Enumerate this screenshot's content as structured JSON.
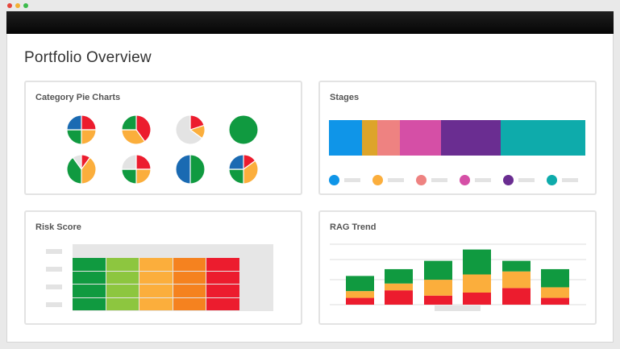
{
  "window": {
    "dots": [
      "#e5463c",
      "#f2b034",
      "#3cbb4c"
    ]
  },
  "page": {
    "title": "Portfolio Overview"
  },
  "colors": {
    "green": "#109a40",
    "lime": "#8dc63f",
    "amber": "#fbae3c",
    "orange": "#f5821f",
    "red": "#ec1c2e",
    "blue": "#1a6ab2",
    "grey": "#e3e3e3"
  },
  "panels": {
    "pies": {
      "title": "Category Pie Charts",
      "pies": [
        {
          "slices": [
            {
              "color": "#ec1c2e",
              "value": 0.25
            },
            {
              "color": "#fbae3c",
              "value": 0.25
            },
            {
              "color": "#109a40",
              "value": 0.25
            },
            {
              "color": "#1a6ab2",
              "value": 0.25
            }
          ]
        },
        {
          "slices": [
            {
              "color": "#ec1c2e",
              "value": 0.4
            },
            {
              "color": "#fbae3c",
              "value": 0.35
            },
            {
              "color": "#109a40",
              "value": 0.25
            }
          ]
        },
        {
          "slices": [
            {
              "color": "#ec1c2e",
              "value": 0.2
            },
            {
              "color": "#fbae3c",
              "value": 0.15
            },
            {
              "color": "#e3e3e3",
              "value": 0.65
            }
          ]
        },
        {
          "slices": [
            {
              "color": "#109a40",
              "value": 1.0
            }
          ]
        },
        {
          "slices": [
            {
              "color": "#ec1c2e",
              "value": 0.1
            },
            {
              "color": "#fbae3c",
              "value": 0.4
            },
            {
              "color": "#109a40",
              "value": 0.4
            },
            {
              "color": "#e3e3e3",
              "value": 0.1
            }
          ]
        },
        {
          "slices": [
            {
              "color": "#ec1c2e",
              "value": 0.25
            },
            {
              "color": "#fbae3c",
              "value": 0.25
            },
            {
              "color": "#109a40",
              "value": 0.25
            },
            {
              "color": "#e3e3e3",
              "value": 0.25
            }
          ]
        },
        {
          "slices": [
            {
              "color": "#109a40",
              "value": 0.5
            },
            {
              "color": "#1a6ab2",
              "value": 0.5
            }
          ]
        },
        {
          "slices": [
            {
              "color": "#ec1c2e",
              "value": 0.15
            },
            {
              "color": "#fbae3c",
              "value": 0.35
            },
            {
              "color": "#109a40",
              "value": 0.25
            },
            {
              "color": "#1a6ab2",
              "value": 0.25
            }
          ]
        }
      ]
    },
    "stages": {
      "title": "Stages",
      "segments": [
        {
          "color": "#0f95e8",
          "value": 41
        },
        {
          "color": "#dda42a",
          "value": 19
        },
        {
          "color": "#ee8281",
          "value": 28
        },
        {
          "color": "#d54fa6",
          "value": 51
        },
        {
          "color": "#6a2d91",
          "value": 74
        },
        {
          "color": "#0eabab",
          "value": 105
        }
      ],
      "legend_colors": [
        "#0f95e8",
        "#fbae3c",
        "#ee8281",
        "#d54fa6",
        "#6a2d91",
        "#0eabab"
      ]
    },
    "risk": {
      "title": "Risk Score",
      "row_count": 4,
      "columns": [
        {
          "color": "#109a40"
        },
        {
          "color": "#8dc63f"
        },
        {
          "color": "#fbae3c"
        },
        {
          "color": "#f5821f"
        },
        {
          "color": "#ec1c2e"
        },
        {
          "color": "#e6e6e6"
        }
      ]
    },
    "rag": {
      "title": "RAG Trend",
      "bars": [
        {
          "red": 9,
          "amber": 9,
          "green": 20
        },
        {
          "red": 19,
          "amber": 9,
          "green": 19
        },
        {
          "red": 12,
          "amber": 21,
          "green": 25
        },
        {
          "red": 16,
          "amber": 24,
          "green": 33
        },
        {
          "red": 22,
          "amber": 22,
          "green": 14
        },
        {
          "red": 9,
          "amber": 14,
          "green": 24
        }
      ],
      "max": 80
    }
  }
}
